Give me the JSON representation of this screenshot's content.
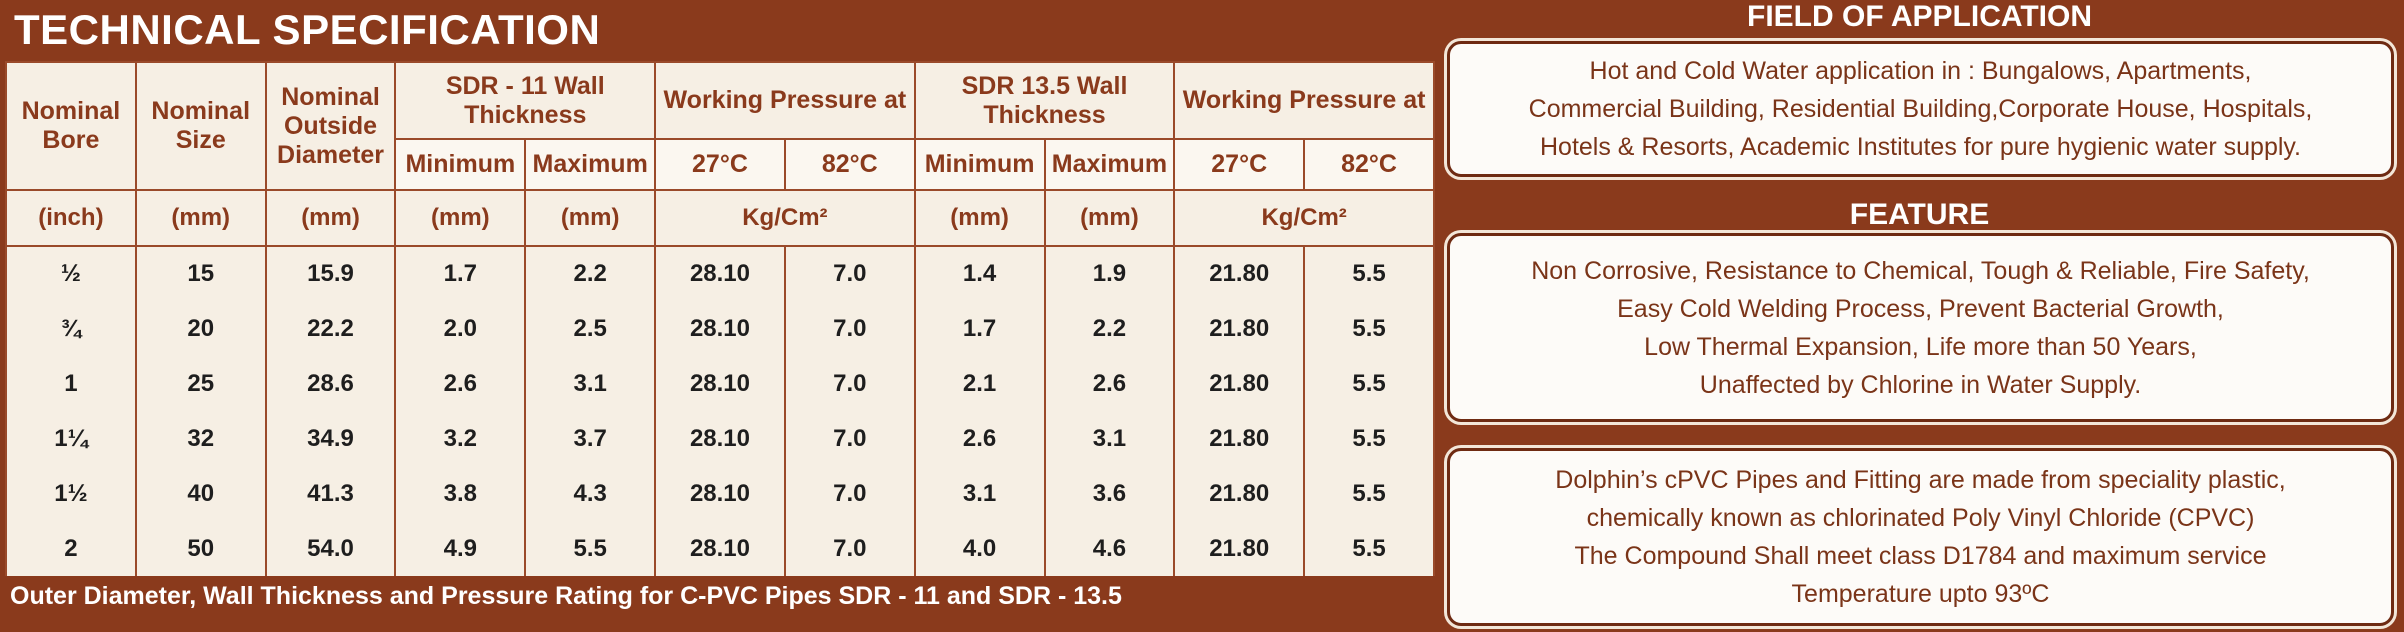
{
  "header": {
    "title": "TECHNICAL SPECIFICATION"
  },
  "table": {
    "group_headers": [
      "Nominal Bore",
      "Nominal Size",
      "Nominal Outside Diameter",
      "SDR - 11 Wall Thickness",
      "Working Pressure at",
      "SDR 13.5 Wall Thickness",
      "Working Pressure at"
    ],
    "sub_headers": [
      "Minimum",
      "Maximum",
      "27°C",
      "82°C",
      "Minimum",
      "Maximum",
      "27°C",
      "82°C"
    ],
    "units": [
      "(inch)",
      "(mm)",
      "(mm)",
      "(mm)",
      "(mm)",
      "Kg/Cm²",
      "(mm)",
      "(mm)",
      "Kg/Cm²"
    ],
    "rows": [
      [
        "½",
        "15",
        "15.9",
        "1.7",
        "2.2",
        "28.10",
        "7.0",
        "1.4",
        "1.9",
        "21.80",
        "5.5"
      ],
      [
        "¾",
        "20",
        "22.2",
        "2.0",
        "2.5",
        "28.10",
        "7.0",
        "1.7",
        "2.2",
        "21.80",
        "5.5"
      ],
      [
        "1",
        "25",
        "28.6",
        "2.6",
        "3.1",
        "28.10",
        "7.0",
        "2.1",
        "2.6",
        "21.80",
        "5.5"
      ],
      [
        "1¼",
        "32",
        "34.9",
        "3.2",
        "3.7",
        "28.10",
        "7.0",
        "2.6",
        "3.1",
        "21.80",
        "5.5"
      ],
      [
        "1½",
        "40",
        "41.3",
        "3.8",
        "4.3",
        "28.10",
        "7.0",
        "3.1",
        "3.6",
        "21.80",
        "5.5"
      ],
      [
        "2",
        "50",
        "54.0",
        "4.9",
        "5.5",
        "28.10",
        "7.0",
        "4.0",
        "4.6",
        "21.80",
        "5.5"
      ]
    ]
  },
  "footnote": "Outer Diameter, Wall Thickness and Pressure Rating for C-PVC Pipes SDR - 11 and SDR - 13.5",
  "sections": [
    {
      "title": "FIELD OF APPLICATION",
      "lines": [
        "Hot and Cold Water application in : Bungalows, Apartments,",
        "Commercial Building, Residential Building,Corporate House, Hospitals,",
        "Hotels & Resorts, Academic Institutes for pure hygienic water supply."
      ]
    },
    {
      "title": "FEATURE",
      "lines": [
        "Non Corrosive, Resistance to Chemical, Tough & Reliable, Fire Safety,",
        "Easy Cold Welding Process, Prevent Bacterial Growth,",
        "Low Thermal Expansion, Life more than 50 Years,",
        "Unaffected by Chlorine in Water Supply."
      ]
    },
    {
      "lines": [
        "Dolphin’s cPVC Pipes and Fitting are made from speciality plastic,",
        "chemically known as chlorinated Poly Vinyl Chloride (CPVC)",
        "The Compound Shall meet class D1784 and maximum service",
        "Temperature upto 93ºC"
      ]
    }
  ]
}
